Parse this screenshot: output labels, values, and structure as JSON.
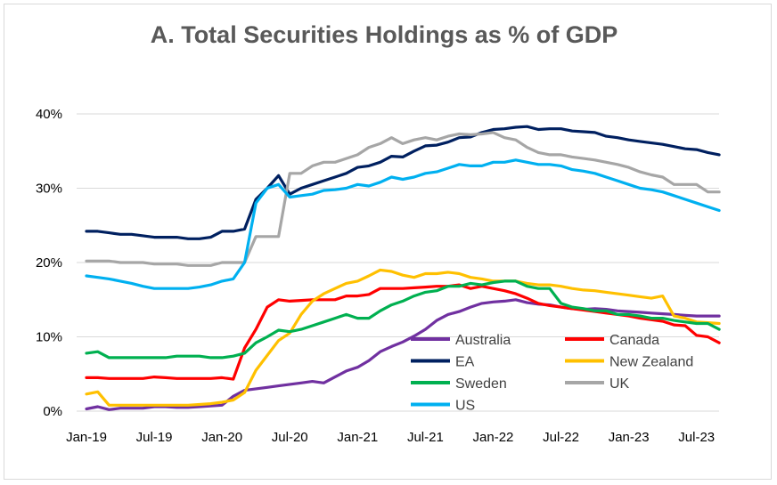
{
  "chart_data": {
    "type": "line",
    "title": "A. Total Securities Holdings as % of GDP",
    "xlabel": "",
    "ylabel": "",
    "ylim": [
      0,
      40
    ],
    "grid": "horizontal",
    "legend": "bottom-right, inside plot, two columns",
    "y_ticks": [
      "0%",
      "10%",
      "20%",
      "30%",
      "40%"
    ],
    "x_ticks": [
      "Jan-19",
      "Jul-19",
      "Jan-20",
      "Jul-20",
      "Jan-21",
      "Jul-21",
      "Jan-22",
      "Jul-22",
      "Jan-23",
      "Jul-23"
    ],
    "x": [
      "Jan-19",
      "Feb-19",
      "Mar-19",
      "Apr-19",
      "May-19",
      "Jun-19",
      "Jul-19",
      "Aug-19",
      "Sep-19",
      "Oct-19",
      "Nov-19",
      "Dec-19",
      "Jan-20",
      "Feb-20",
      "Mar-20",
      "Apr-20",
      "May-20",
      "Jun-20",
      "Jul-20",
      "Aug-20",
      "Sep-20",
      "Oct-20",
      "Nov-20",
      "Dec-20",
      "Jan-21",
      "Feb-21",
      "Mar-21",
      "Apr-21",
      "May-21",
      "Jun-21",
      "Jul-21",
      "Aug-21",
      "Sep-21",
      "Oct-21",
      "Nov-21",
      "Dec-21",
      "Jan-22",
      "Feb-22",
      "Mar-22",
      "Apr-22",
      "May-22",
      "Jun-22",
      "Jul-22",
      "Aug-22",
      "Sep-22",
      "Oct-22",
      "Nov-22",
      "Dec-22",
      "Jan-23",
      "Feb-23",
      "Mar-23",
      "Apr-23",
      "May-23",
      "Jun-23",
      "Jul-23",
      "Aug-23",
      "Sep-23"
    ],
    "series": [
      {
        "name": "Australia",
        "color": "#7030a0",
        "values": [
          0.3,
          0.6,
          0.2,
          0.4,
          0.4,
          0.4,
          0.6,
          0.6,
          0.5,
          0.5,
          0.6,
          0.7,
          0.8,
          2.0,
          2.8,
          3.0,
          3.2,
          3.4,
          3.6,
          3.8,
          4.0,
          3.8,
          4.6,
          5.4,
          5.9,
          6.8,
          8.0,
          8.7,
          9.3,
          10.1,
          11.0,
          12.2,
          13.0,
          13.4,
          14.0,
          14.5,
          14.7,
          14.8,
          15.0,
          14.6,
          14.4,
          14.3,
          14.0,
          13.8,
          13.7,
          13.8,
          13.7,
          13.5,
          13.4,
          13.3,
          13.2,
          13.1,
          13.0,
          12.9,
          12.8,
          12.8,
          12.8
        ]
      },
      {
        "name": "Canada",
        "color": "#ff0000",
        "values": [
          4.5,
          4.5,
          4.4,
          4.4,
          4.4,
          4.4,
          4.6,
          4.5,
          4.4,
          4.4,
          4.4,
          4.4,
          4.5,
          4.3,
          8.5,
          11.0,
          14.0,
          15.0,
          14.8,
          14.9,
          15.0,
          15.0,
          15.0,
          15.5,
          15.5,
          15.7,
          16.5,
          16.5,
          16.5,
          16.6,
          16.7,
          16.8,
          16.8,
          17.0,
          16.5,
          16.8,
          16.5,
          16.2,
          15.8,
          15.2,
          14.5,
          14.2,
          14.0,
          13.8,
          13.6,
          13.4,
          13.2,
          13.0,
          12.8,
          12.5,
          12.3,
          12.1,
          11.6,
          11.5,
          10.2,
          10.0,
          9.2
        ]
      },
      {
        "name": "EA",
        "color": "#002060",
        "values": [
          24.2,
          24.2,
          24.0,
          23.8,
          23.8,
          23.6,
          23.4,
          23.4,
          23.4,
          23.2,
          23.2,
          23.4,
          24.2,
          24.2,
          24.5,
          28.5,
          30.0,
          31.7,
          29.2,
          30.0,
          30.5,
          31.0,
          31.5,
          32.0,
          32.8,
          33.0,
          33.5,
          34.3,
          34.2,
          35.0,
          35.7,
          35.8,
          36.2,
          36.8,
          36.9,
          37.5,
          37.9,
          38.0,
          38.2,
          38.3,
          37.9,
          38.0,
          38.0,
          37.7,
          37.6,
          37.5,
          37.0,
          36.8,
          36.5,
          36.3,
          36.1,
          35.9,
          35.6,
          35.3,
          35.2,
          34.8,
          34.5
        ]
      },
      {
        "name": "New Zealand",
        "color": "#ffc000",
        "values": [
          2.3,
          2.6,
          0.8,
          0.8,
          0.8,
          0.8,
          0.8,
          0.8,
          0.8,
          0.8,
          0.9,
          1.0,
          1.2,
          1.5,
          2.5,
          5.5,
          7.5,
          9.5,
          10.5,
          13.0,
          14.8,
          15.8,
          16.5,
          17.2,
          17.5,
          18.2,
          19.0,
          18.8,
          18.3,
          18.0,
          18.5,
          18.5,
          18.7,
          18.5,
          18.0,
          17.8,
          17.5,
          17.5,
          17.5,
          17.2,
          17.0,
          17.0,
          16.8,
          16.5,
          16.3,
          16.2,
          16.0,
          15.8,
          15.6,
          15.4,
          15.2,
          15.5,
          12.8,
          12.5,
          12.0,
          11.9,
          11.8
        ]
      },
      {
        "name": "Sweden",
        "color": "#00b050",
        "values": [
          7.8,
          8.0,
          7.2,
          7.2,
          7.2,
          7.2,
          7.2,
          7.2,
          7.4,
          7.4,
          7.4,
          7.2,
          7.2,
          7.4,
          7.8,
          9.2,
          10.0,
          10.9,
          10.7,
          11.0,
          11.5,
          12.0,
          12.5,
          13.0,
          12.5,
          12.5,
          13.5,
          14.3,
          14.8,
          15.5,
          16.0,
          16.2,
          16.8,
          16.8,
          17.2,
          17.0,
          17.3,
          17.5,
          17.5,
          16.8,
          16.5,
          16.5,
          14.5,
          14.0,
          13.8,
          13.5,
          13.5,
          13.0,
          13.0,
          12.8,
          12.5,
          12.5,
          12.2,
          12.0,
          11.8,
          11.8,
          11.0
        ]
      },
      {
        "name": "UK",
        "color": "#a6a6a6",
        "values": [
          20.2,
          20.2,
          20.2,
          20.0,
          20.0,
          20.0,
          19.8,
          19.8,
          19.8,
          19.6,
          19.6,
          19.6,
          20.0,
          20.0,
          20.0,
          23.5,
          23.5,
          23.5,
          32.0,
          32.0,
          33.0,
          33.5,
          33.5,
          34.0,
          34.5,
          35.5,
          36.0,
          36.8,
          36.0,
          36.5,
          36.8,
          36.5,
          37.0,
          37.3,
          37.2,
          37.3,
          37.5,
          36.8,
          36.5,
          35.5,
          34.8,
          34.5,
          34.5,
          34.2,
          34.0,
          33.8,
          33.5,
          33.2,
          32.8,
          32.2,
          31.8,
          31.5,
          30.5,
          30.5,
          30.5,
          29.5,
          29.5
        ]
      },
      {
        "name": "US",
        "color": "#00b0f0",
        "values": [
          18.2,
          18.0,
          17.8,
          17.5,
          17.2,
          16.8,
          16.5,
          16.5,
          16.5,
          16.5,
          16.7,
          17.0,
          17.5,
          17.8,
          20.0,
          28.0,
          30.0,
          30.5,
          28.8,
          29.0,
          29.2,
          29.7,
          29.8,
          30.0,
          30.5,
          30.3,
          30.8,
          31.5,
          31.2,
          31.5,
          32.0,
          32.2,
          32.7,
          33.2,
          33.0,
          33.0,
          33.5,
          33.5,
          33.8,
          33.5,
          33.2,
          33.2,
          33.0,
          32.5,
          32.3,
          32.0,
          31.5,
          31.0,
          30.5,
          30.0,
          29.8,
          29.5,
          29.0,
          28.5,
          28.0,
          27.5,
          27.0
        ]
      }
    ]
  }
}
